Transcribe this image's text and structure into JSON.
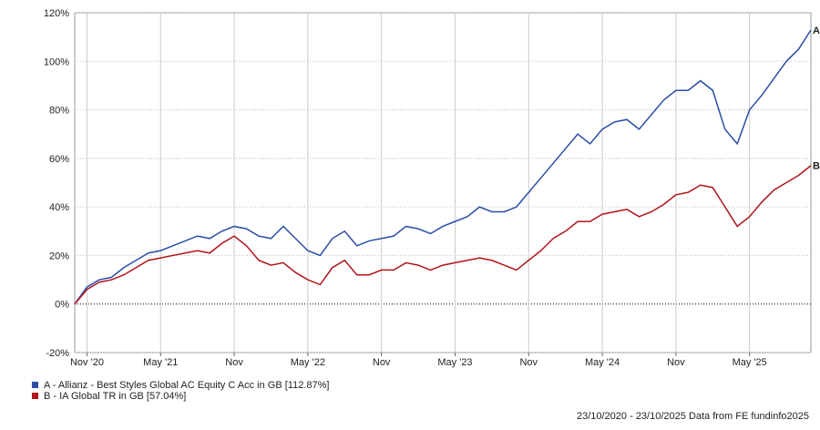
{
  "chart_data": {
    "type": "line",
    "x": [
      "2020-10",
      "2020-11",
      "2020-12",
      "2021-01",
      "2021-02",
      "2021-03",
      "2021-04",
      "2021-05",
      "2021-06",
      "2021-07",
      "2021-08",
      "2021-09",
      "2021-10",
      "2021-11",
      "2021-12",
      "2022-01",
      "2022-02",
      "2022-03",
      "2022-04",
      "2022-05",
      "2022-06",
      "2022-07",
      "2022-08",
      "2022-09",
      "2022-10",
      "2022-11",
      "2022-12",
      "2023-01",
      "2023-02",
      "2023-03",
      "2023-04",
      "2023-05",
      "2023-06",
      "2023-07",
      "2023-08",
      "2023-09",
      "2023-10",
      "2023-11",
      "2023-12",
      "2024-01",
      "2024-02",
      "2024-03",
      "2024-04",
      "2024-05",
      "2024-06",
      "2024-07",
      "2024-08",
      "2024-09",
      "2024-10",
      "2024-11",
      "2024-12",
      "2025-01",
      "2025-02",
      "2025-03",
      "2025-04",
      "2025-05",
      "2025-06",
      "2025-07",
      "2025-08",
      "2025-09",
      "2025-10"
    ],
    "series": [
      {
        "name": "A - Allianz - Best Styles Global AC Equity C Acc in GB [112.87%]",
        "label": "A",
        "color": "#2a4ea6",
        "values": [
          0,
          7,
          10,
          11,
          15,
          18,
          21,
          22,
          24,
          26,
          28,
          27,
          30,
          32,
          31,
          28,
          27,
          32,
          27,
          22,
          20,
          27,
          30,
          24,
          26,
          27,
          28,
          32,
          31,
          29,
          32,
          34,
          36,
          40,
          38,
          38,
          40,
          46,
          52,
          58,
          64,
          70,
          66,
          72,
          75,
          76,
          72,
          78,
          84,
          88,
          88,
          92,
          88,
          72,
          66,
          80,
          86,
          93,
          100,
          105,
          112.87
        ]
      },
      {
        "name": "B - IA Global TR in GB [57.04%]",
        "label": "B",
        "color": "#b0141c",
        "values": [
          0,
          6,
          9,
          10,
          12,
          15,
          18,
          19,
          20,
          21,
          22,
          21,
          25,
          28,
          24,
          18,
          16,
          17,
          13,
          10,
          8,
          15,
          18,
          12,
          12,
          14,
          14,
          17,
          16,
          14,
          16,
          17,
          18,
          19,
          18,
          16,
          14,
          18,
          22,
          27,
          30,
          34,
          34,
          37,
          38,
          39,
          36,
          38,
          41,
          45,
          46,
          49,
          48,
          40,
          32,
          36,
          42,
          47,
          50,
          53,
          57.04
        ]
      }
    ],
    "xlim": [
      "2020-10",
      "2025-10"
    ],
    "xticks": [
      {
        "value": "2020-11",
        "label": "Nov '20"
      },
      {
        "value": "2021-05",
        "label": "May '21"
      },
      {
        "value": "2021-11",
        "label": "Nov"
      },
      {
        "value": "2022-05",
        "label": "May '22"
      },
      {
        "value": "2022-11",
        "label": "Nov"
      },
      {
        "value": "2023-05",
        "label": "May '23"
      },
      {
        "value": "2023-11",
        "label": "Nov"
      },
      {
        "value": "2024-05",
        "label": "May '24"
      },
      {
        "value": "2024-11",
        "label": "Nov"
      },
      {
        "value": "2025-05",
        "label": "May '25"
      }
    ],
    "ylim": [
      -20,
      120
    ],
    "yticks": [
      {
        "value": -20,
        "label": "-20%"
      },
      {
        "value": 0,
        "label": "0%"
      },
      {
        "value": 20,
        "label": "20%"
      },
      {
        "value": 40,
        "label": "40%"
      },
      {
        "value": 60,
        "label": "60%"
      },
      {
        "value": 80,
        "label": "80%"
      },
      {
        "value": 100,
        "label": "100%"
      },
      {
        "value": 120,
        "label": "120%"
      }
    ],
    "grid": true,
    "footer": "23/10/2020 - 23/10/2025 Data from FE fundinfo2025"
  }
}
